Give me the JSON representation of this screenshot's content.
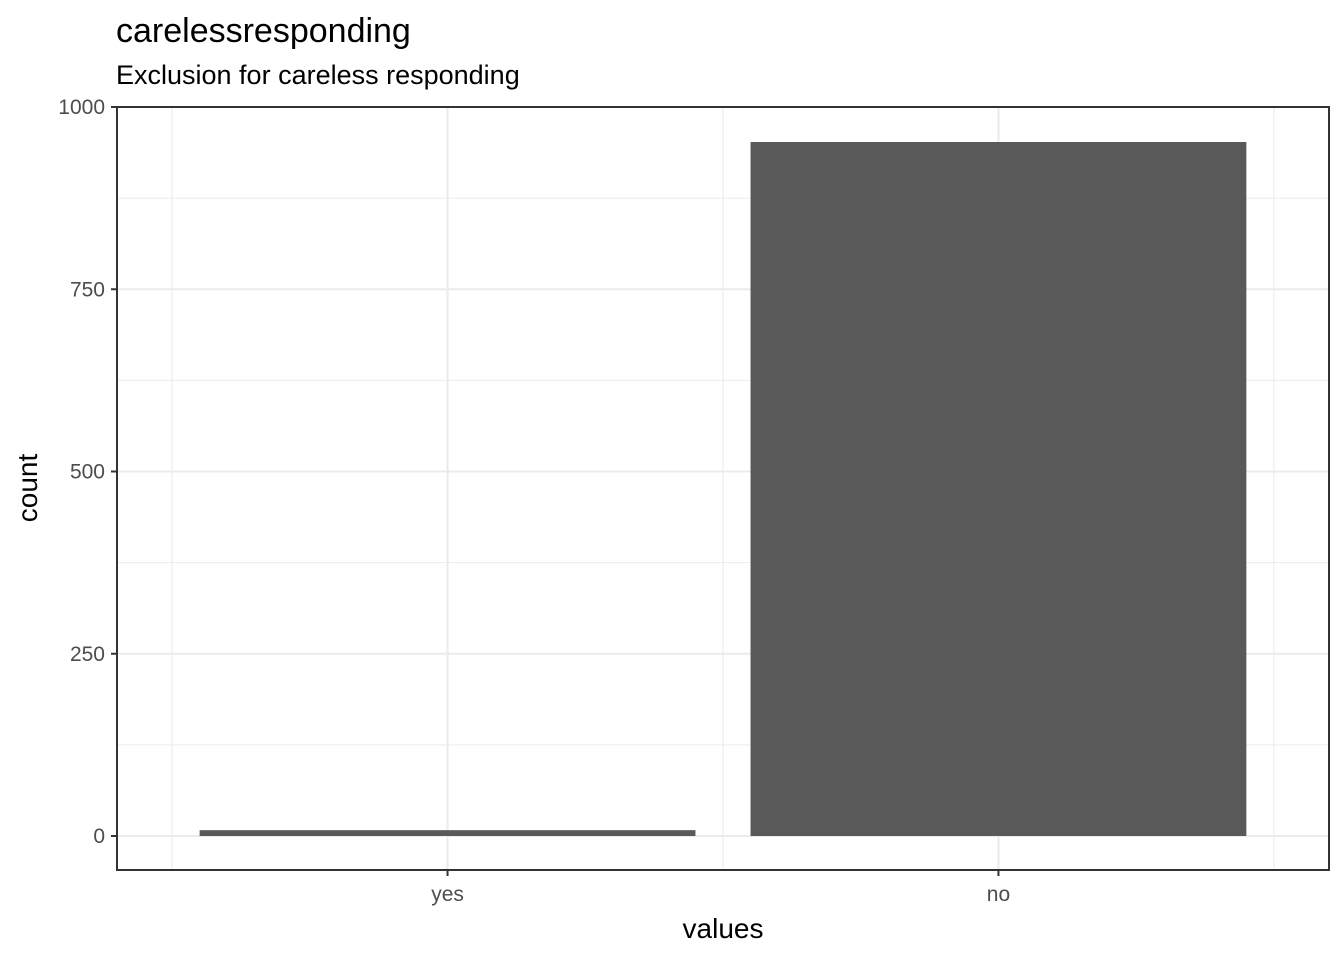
{
  "chart_data": {
    "type": "bar",
    "title": "carelessresponding",
    "subtitle": "Exclusion for careless responding",
    "xlabel": "values",
    "ylabel": "count",
    "categories": [
      "yes",
      "no"
    ],
    "values": [
      8,
      952
    ],
    "ylim": [
      -47,
      1000
    ],
    "yticks": [
      0,
      250,
      500,
      750,
      1000
    ],
    "ytick_labels": [
      "0",
      "250",
      "500",
      "750",
      "1000"
    ],
    "bar_color": "#595959",
    "grid": true
  }
}
